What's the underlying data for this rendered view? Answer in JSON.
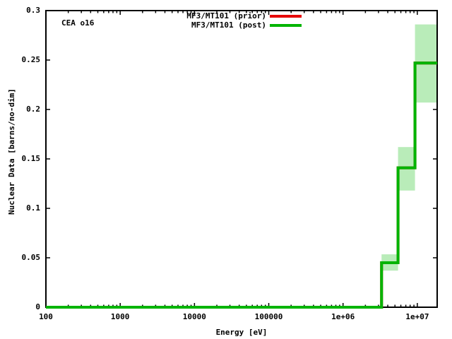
{
  "window": {
    "background": "#ffffff",
    "text_color": "#000000"
  },
  "chart_data": {
    "type": "step-line",
    "title": "",
    "corner_label": "CEA o16",
    "xlabel": "Energy [eV]",
    "ylabel": "Nuclear Data [barns/no-dim]",
    "x_scale": "log",
    "x_range": [
      100,
      18500000
    ],
    "y_range": [
      0,
      0.3
    ],
    "grid": false,
    "legend_position": "top-right-inside",
    "x_ticks": [
      {
        "value": 100,
        "label": "100"
      },
      {
        "value": 1000,
        "label": "1000"
      },
      {
        "value": 10000,
        "label": "10000"
      },
      {
        "value": 100000,
        "label": "100000"
      },
      {
        "value": 1000000,
        "label": "1e+06"
      },
      {
        "value": 10000000,
        "label": "1e+07"
      }
    ],
    "x_minor_tick_mantissas": [
      2,
      3,
      4,
      5,
      6,
      7,
      8,
      9
    ],
    "y_ticks": [
      {
        "value": 0,
        "label": "0"
      },
      {
        "value": 0.05,
        "label": "0.05"
      },
      {
        "value": 0.1,
        "label": "0.1"
      },
      {
        "value": 0.15,
        "label": "0.15"
      },
      {
        "value": 0.2,
        "label": "0.2"
      },
      {
        "value": 0.25,
        "label": "0.25"
      },
      {
        "value": 0.3,
        "label": "0.3"
      }
    ],
    "series": [
      {
        "name": "MF3/MT101 (prior)",
        "color": "#e60000",
        "steps": [
          [
            100,
            0
          ],
          [
            3300000,
            0.045
          ],
          [
            5500000,
            0.141
          ],
          [
            9300000,
            0.247
          ]
        ],
        "note": "coincides with post curve and is hidden beneath it"
      },
      {
        "name": "MF3/MT101 (post)",
        "color": "#00b400",
        "band_color": "#b9ecb9",
        "steps": [
          [
            100,
            0
          ],
          [
            3300000,
            0.045
          ],
          [
            5500000,
            0.141
          ],
          [
            9300000,
            0.247
          ]
        ],
        "uncertainty_bands": [
          {
            "x_start": 3300000,
            "x_end": 5500000,
            "y_low": 0.037,
            "y_high": 0.0535
          },
          {
            "x_start": 5500000,
            "x_end": 9300000,
            "y_low": 0.118,
            "y_high": 0.162
          },
          {
            "x_start": 9300000,
            "x_end": 18500000,
            "y_low": 0.207,
            "y_high": 0.286
          }
        ]
      }
    ]
  }
}
